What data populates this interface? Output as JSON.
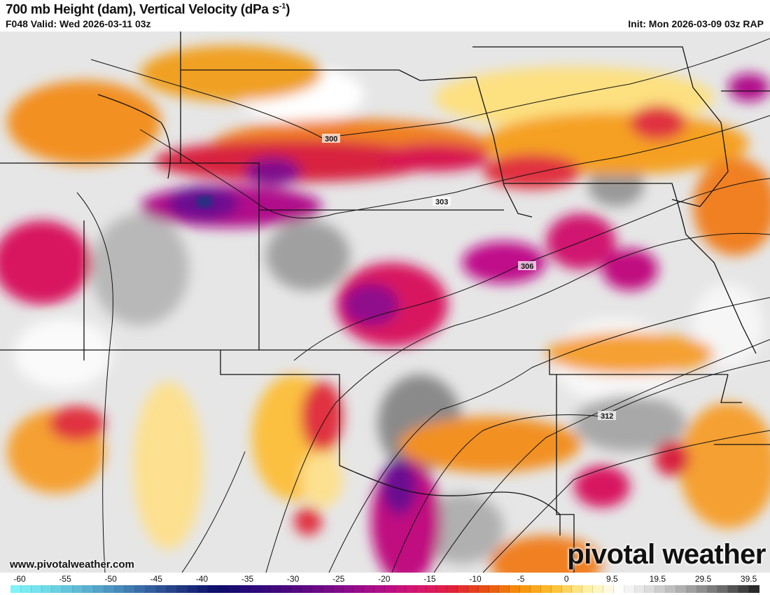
{
  "header": {
    "title": "700 mb Height (dam), Vertical Velocity (dPa s",
    "title_sup": "-1",
    "title_end": ")",
    "valid": "F048 Valid: Wed 2026-03-11 03z",
    "init": "Init: Mon 2026-03-09 03z RAP"
  },
  "map": {
    "contour_labels": [
      "300",
      "303",
      "306",
      "312"
    ],
    "watermark_url": "www.pivotalweather.com",
    "logo": "pivotal weather"
  },
  "colorbar": {
    "ticks": [
      "-60",
      "-55",
      "-50",
      "-45",
      "-40",
      "-35",
      "-30",
      "-25",
      "-20",
      "-15",
      "-10",
      "-5",
      "0",
      "9.5",
      "19.5",
      "29.5",
      "39.5"
    ],
    "colors": [
      "#7ff3f8",
      "#6fd8e6",
      "#5fb6d4",
      "#4a8fbf",
      "#35609f",
      "#1f3580",
      "#0c0d6a",
      "#2a0a7a",
      "#48087e",
      "#6a0a86",
      "#900c8c",
      "#b80e86",
      "#d81670",
      "#e0203c",
      "#e85010",
      "#f5900a",
      "#fdc030",
      "#fff0a0",
      "#ffffff",
      "#d8d8d8",
      "#a8a8a8",
      "#707070",
      "#2a2a2a"
    ]
  }
}
